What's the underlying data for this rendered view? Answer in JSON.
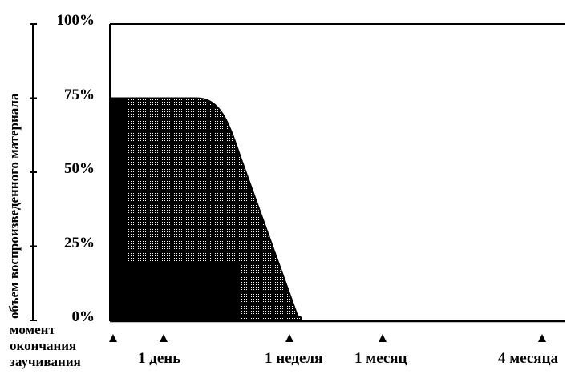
{
  "chart_data": {
    "type": "area",
    "title": "",
    "xlabel": "",
    "ylabel": "объем воспроизведенного материала",
    "ylim": [
      0,
      100
    ],
    "y_ticks": [
      "0%",
      "25%",
      "50%",
      "75%",
      "100%"
    ],
    "x_markers": [
      "момент окончания заучивания",
      "1 день",
      "1 неделя",
      "1 месяц",
      "4 месяца"
    ],
    "origin_label_lines": [
      "момент",
      "окончания",
      "заучивания"
    ],
    "series": [
      {
        "values_at_markers": [
          75,
          75,
          1,
          0,
          0
        ],
        "fill": "dotted gray"
      },
      {
        "values_at_markers": [
          20,
          20,
          0,
          0,
          0
        ],
        "fill": "black"
      }
    ],
    "grid": false,
    "colors": {
      "ink": "#000000",
      "background": "#ffffff"
    }
  }
}
